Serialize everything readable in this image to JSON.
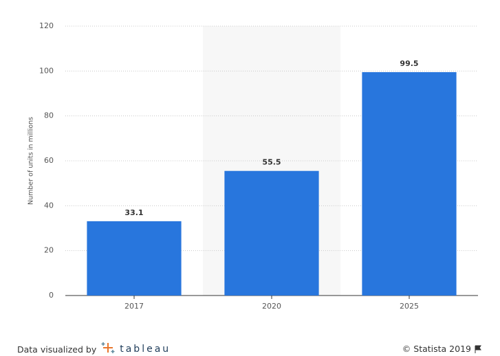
{
  "chart_data": {
    "type": "bar",
    "y_label": "Number of units in millions",
    "categories": [
      "2017",
      "2020",
      "2025"
    ],
    "values": [
      33.1,
      55.5,
      99.5
    ],
    "color": "#2876dd",
    "ylim": [
      0,
      120
    ],
    "yticks": [
      0,
      20,
      40,
      60,
      80,
      100,
      120
    ],
    "grid": true
  },
  "footer": {
    "credit": "Data visualized by",
    "logo": "tableau",
    "copyright": "© Statista 2019"
  }
}
